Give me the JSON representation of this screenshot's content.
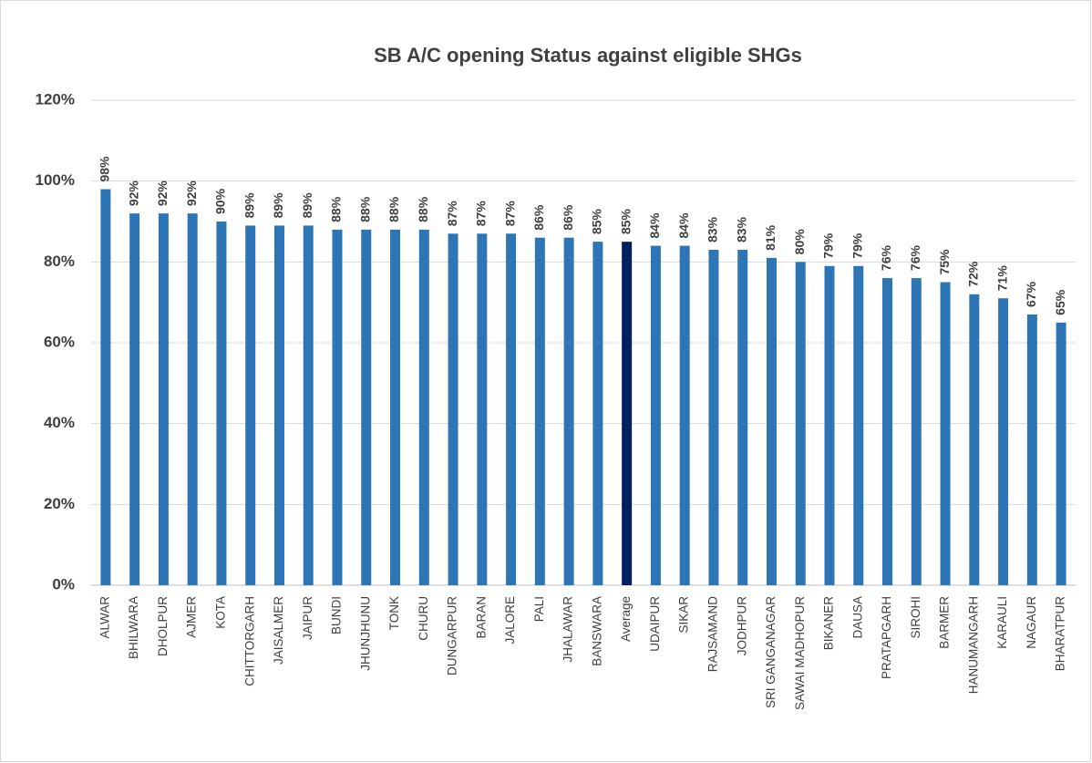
{
  "chart_data": {
    "type": "bar",
    "title": "SB A/C opening Status against eligible SHGs",
    "categories": [
      "ALWAR",
      "BHILWARA",
      "DHOLPUR",
      "AJMER",
      "KOTA",
      "CHITTORGARH",
      "JAISALMER",
      "JAIPUR",
      "BUNDI",
      "JHUNJHUNU",
      "TONK",
      "CHURU",
      "DUNGARPUR",
      "BARAN",
      "JALORE",
      "PALI",
      "JHALAWAR",
      "BANSWARA",
      "Average",
      "UDAIPUR",
      "SIKAR",
      "RAJSAMAND",
      "JODHPUR",
      "SRI GANGANAGAR",
      "SAWAI MADHOPUR",
      "BIKANER",
      "DAUSA",
      "PRATAPGARH",
      "SIROHI",
      "BARMER",
      "HANUMANGARH",
      "KARAULI",
      "NAGAUR",
      "BHARATPUR"
    ],
    "values": [
      98,
      92,
      92,
      92,
      90,
      89,
      89,
      89,
      88,
      88,
      88,
      88,
      87,
      87,
      87,
      86,
      86,
      85,
      85,
      84,
      84,
      83,
      83,
      81,
      80,
      79,
      79,
      76,
      76,
      75,
      72,
      71,
      67,
      65
    ],
    "value_labels": [
      "98%",
      "92%",
      "92%",
      "92%",
      "90%",
      "89%",
      "89%",
      "89%",
      "88%",
      "88%",
      "88%",
      "88%",
      "87%",
      "87%",
      "87%",
      "86%",
      "86%",
      "85%",
      "85%",
      "84%",
      "84%",
      "83%",
      "83%",
      "81%",
      "80%",
      "79%",
      "79%",
      "76%",
      "76%",
      "75%",
      "72%",
      "71%",
      "67%",
      "65%"
    ],
    "colors": [
      "#2e75b6",
      "#2e75b6",
      "#2e75b6",
      "#2e75b6",
      "#2e75b6",
      "#2e75b6",
      "#2e75b6",
      "#2e75b6",
      "#2e75b6",
      "#2e75b6",
      "#2e75b6",
      "#2e75b6",
      "#2e75b6",
      "#2e75b6",
      "#2e75b6",
      "#2e75b6",
      "#2e75b6",
      "#2e75b6",
      "#002060",
      "#2e75b6",
      "#2e75b6",
      "#2e75b6",
      "#2e75b6",
      "#2e75b6",
      "#2e75b6",
      "#2e75b6",
      "#2e75b6",
      "#2e75b6",
      "#2e75b6",
      "#2e75b6",
      "#2e75b6",
      "#2e75b6",
      "#2e75b6",
      "#2e75b6"
    ],
    "ylim": [
      0,
      120
    ],
    "yticks": [
      {
        "value": 0,
        "label": "0%"
      },
      {
        "value": 20,
        "label": "20%"
      },
      {
        "value": 40,
        "label": "40%"
      },
      {
        "value": 60,
        "label": "60%"
      },
      {
        "value": 80,
        "label": "80%"
      },
      {
        "value": 100,
        "label": "100%"
      },
      {
        "value": 120,
        "label": "120%"
      }
    ],
    "grid": true
  }
}
